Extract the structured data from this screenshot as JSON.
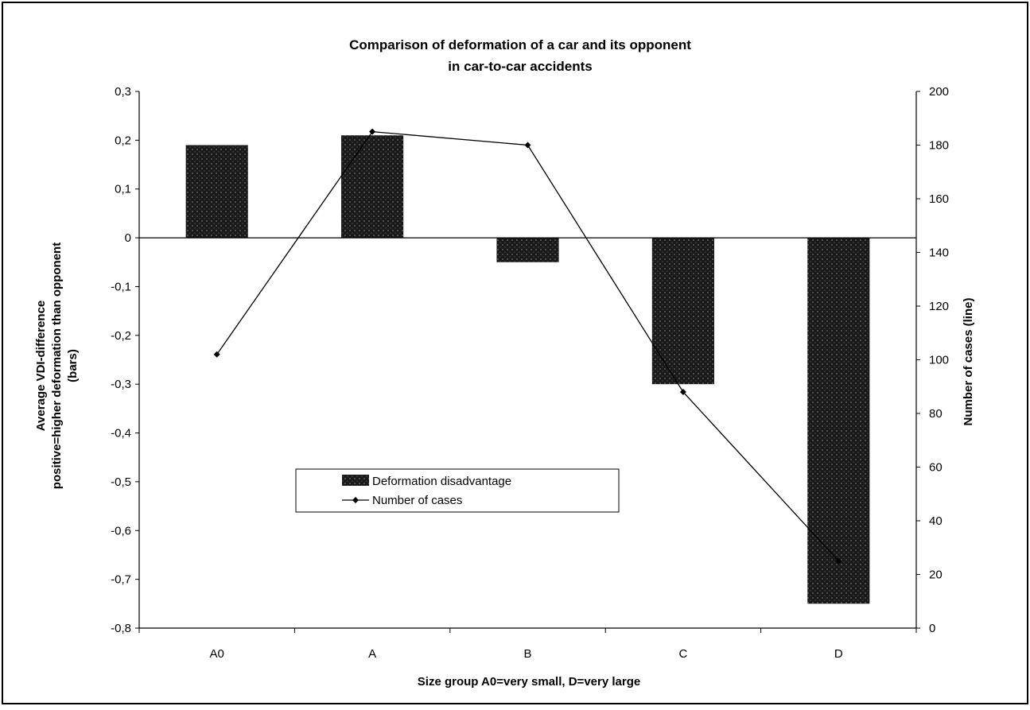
{
  "chart_data": {
    "type": "bar",
    "title": "Comparison of deformation of a car and its opponent",
    "subtitle": "in car-to-car accidents",
    "xlabel": "Size group A0=very small, D=very large",
    "ylabel_lines": [
      "Average VDI-difference",
      "positive=higher deformation than opponent",
      "(bars)"
    ],
    "y2label": "Number of cases (line)",
    "categories": [
      "A0",
      "A",
      "B",
      "C",
      "D"
    ],
    "series": [
      {
        "name": "Deformation disadvantage",
        "kind": "bar",
        "axis": "left",
        "values": [
          0.19,
          0.21,
          -0.05,
          -0.3,
          -0.75
        ]
      },
      {
        "name": "Number of cases",
        "kind": "line",
        "axis": "right",
        "values": [
          102,
          185,
          180,
          88,
          25
        ]
      }
    ],
    "ylim": [
      -0.8,
      0.3
    ],
    "y_ticks": [
      "0,3",
      "0,2",
      "0,1",
      "0",
      "-0,1",
      "-0,2",
      "-0,3",
      "-0,4",
      "-0,5",
      "-0,6",
      "-0,7",
      "-0,8"
    ],
    "y2lim": [
      0,
      200
    ],
    "y2_ticks": [
      "200",
      "180",
      "160",
      "140",
      "120",
      "100",
      "80",
      "60",
      "40",
      "20",
      "0"
    ],
    "legend_position": "center-left",
    "grid": false,
    "colors": {
      "bar": "#1a1a1a",
      "bar_texture": "#6a6a6a",
      "line": "#000000",
      "frame": "#000000"
    }
  }
}
